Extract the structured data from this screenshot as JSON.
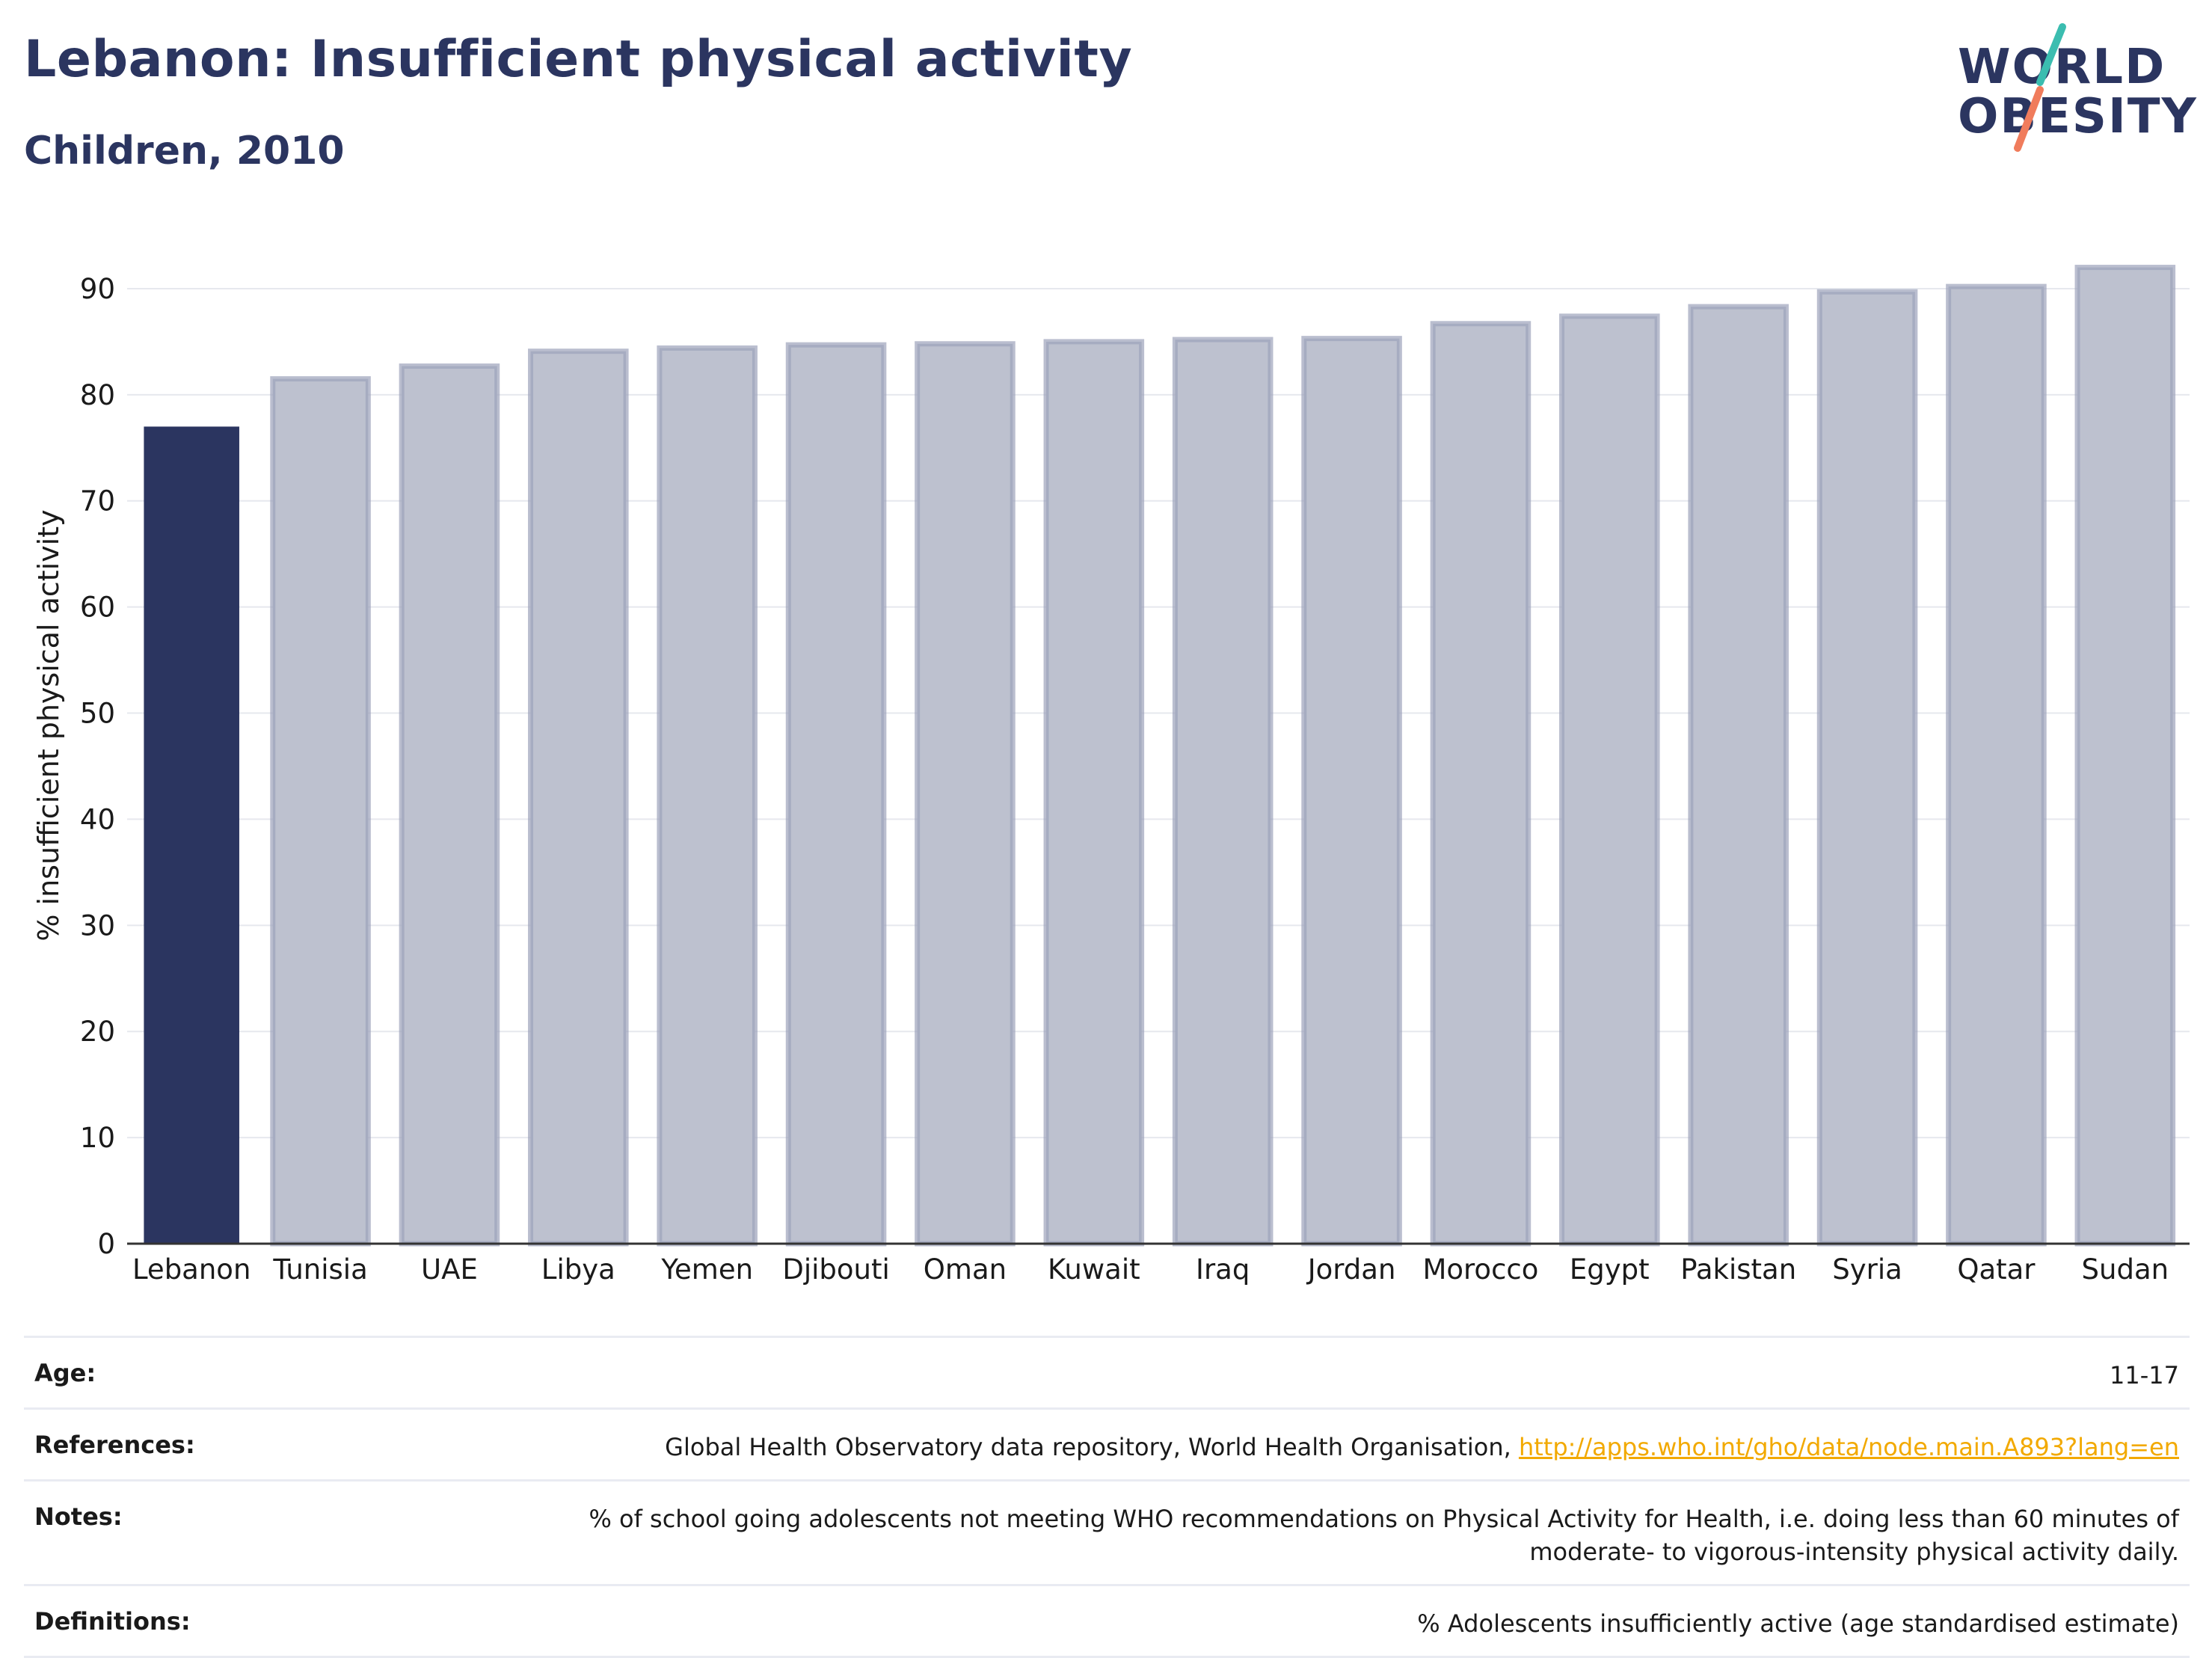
{
  "header": {
    "title": "Lebanon: Insufficient physical activity",
    "subtitle": "Children, 2010"
  },
  "logo": {
    "line1": "WORLD",
    "line2": "OBESITY",
    "colors": {
      "text": "#2b3560",
      "slash_top": "#3bbdb0",
      "slash_bottom": "#f07c5c"
    }
  },
  "colors": {
    "highlight_bar": "#2b3560",
    "other_bar_fill": "#bdc1cf",
    "other_bar_stroke": "#9ca2ba",
    "grid": "#e6e8ee"
  },
  "chart_data": {
    "type": "bar",
    "ylabel": "% insufficient physical activity",
    "ylim": [
      0,
      95
    ],
    "yticks": [
      0,
      10,
      20,
      30,
      40,
      50,
      60,
      70,
      80,
      90
    ],
    "grid": true,
    "highlight": "Lebanon",
    "categories": [
      "Lebanon",
      "Tunisia",
      "UAE",
      "Libya",
      "Yemen",
      "Djibouti",
      "Oman",
      "Kuwait",
      "Iraq",
      "Jordan",
      "Morocco",
      "Egypt",
      "Pakistan",
      "Syria",
      "Qatar",
      "Sudan"
    ],
    "values": [
      77.0,
      81.5,
      82.7,
      84.1,
      84.4,
      84.7,
      84.8,
      85.0,
      85.2,
      85.3,
      86.7,
      87.4,
      88.3,
      89.7,
      90.2,
      92.0
    ]
  },
  "meta": {
    "age_label": "Age:",
    "age_value": "11-17",
    "references_label": "References:",
    "references_text": "Global Health Observatory data repository, World Health Organisation,",
    "references_link": "http://apps.who.int/gho/data/node.main.A893?lang=en",
    "notes_label": "Notes:",
    "notes_line1": "% of school going adolescents not meeting WHO recommendations on Physical Activity for Health, i.e. doing less than 60 minutes of",
    "notes_line2": "moderate- to vigorous-intensity physical activity daily.",
    "definitions_label": "Definitions:",
    "definitions_value": "% Adolescents insufficiently active (age standardised estimate)"
  }
}
